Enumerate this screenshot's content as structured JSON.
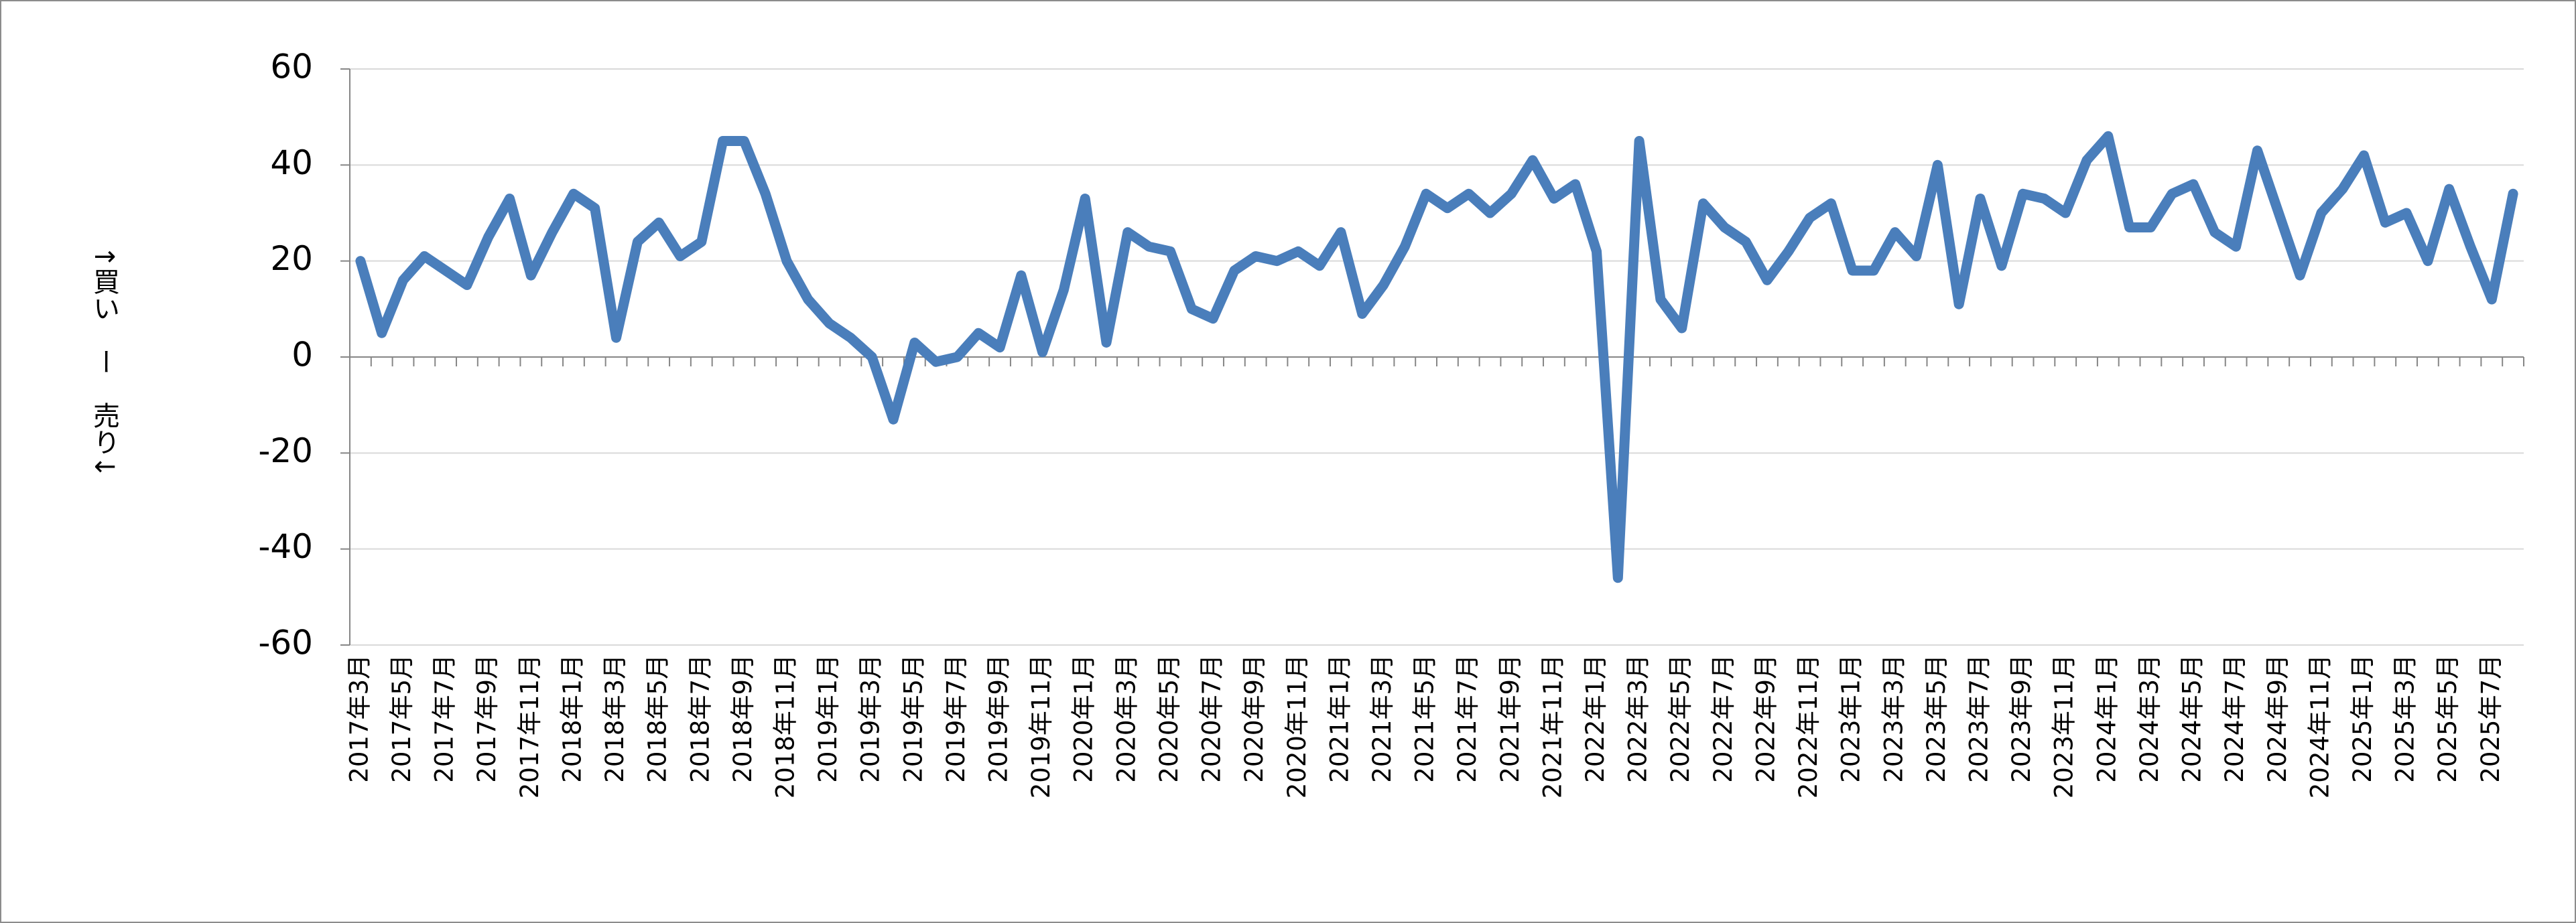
{
  "chart_data": {
    "type": "line",
    "y_label": "↑買い　ー　売り↓",
    "categories": [
      "2017年3月",
      null,
      "2017年5月",
      null,
      "2017年7月",
      null,
      "2017年9月",
      null,
      "2017年11月",
      null,
      "2018年1月",
      null,
      "2018年3月",
      null,
      "2018年5月",
      null,
      "2018年7月",
      null,
      "2018年9月",
      null,
      "2018年11月",
      null,
      "2019年1月",
      null,
      "2019年3月",
      null,
      "2019年5月",
      null,
      "2019年7月",
      null,
      "2019年9月",
      null,
      "2019年11月",
      null,
      "2020年1月",
      null,
      "2020年3月",
      null,
      "2020年5月",
      null,
      "2020年7月",
      null,
      "2020年9月",
      null,
      "2020年11月",
      null,
      "2021年1月",
      null,
      "2021年3月",
      null,
      "2021年5月",
      null,
      "2021年7月",
      null,
      "2021年9月",
      null,
      "2021年11月",
      null,
      "2022年1月",
      null,
      "2022年3月",
      null,
      "2022年5月",
      null,
      "2022年7月",
      null,
      "2022年9月",
      null,
      "2022年11月",
      null,
      "2023年1月",
      null,
      "2023年3月",
      null,
      "2023年5月",
      null,
      "2023年7月",
      null,
      "2023年9月",
      null,
      "2023年11月",
      null,
      "2024年1月",
      null,
      "2024年3月",
      null,
      "2024年5月",
      null,
      "2024年7月",
      null,
      "2024年9月",
      null,
      "2024年11月",
      null,
      "2025年1月",
      null,
      "2025年3月",
      null,
      "2025年5月",
      null,
      "2025年7月",
      null
    ],
    "series": [
      {
        "color": "#4a7ebb",
        "values": [
          20,
          5,
          16,
          21,
          18,
          15,
          25,
          33,
          17,
          26,
          34,
          31,
          4,
          24,
          28,
          21,
          24,
          45,
          45,
          34,
          20,
          12,
          7,
          4,
          0,
          -13,
          3,
          -1,
          0,
          5,
          2,
          17,
          1,
          14,
          33,
          3,
          26,
          23,
          22,
          10,
          8,
          18,
          21,
          20,
          22,
          19,
          26,
          9,
          15,
          23,
          34,
          31,
          34,
          30,
          34,
          41,
          33,
          36,
          22,
          -46,
          45,
          12,
          6,
          32,
          27,
          24,
          16,
          22,
          29,
          32,
          18,
          18,
          26,
          21,
          40,
          11,
          33,
          19,
          34,
          33,
          30,
          41,
          46,
          27,
          27,
          34,
          36,
          26,
          23,
          43,
          30,
          17,
          30,
          35,
          42,
          28,
          30,
          20,
          35,
          23,
          12,
          34
        ]
      }
    ],
    "ylim": [
      -60,
      60
    ],
    "yticks": [
      -60,
      -40,
      -20,
      0,
      20,
      40,
      60
    ],
    "grid": true
  }
}
